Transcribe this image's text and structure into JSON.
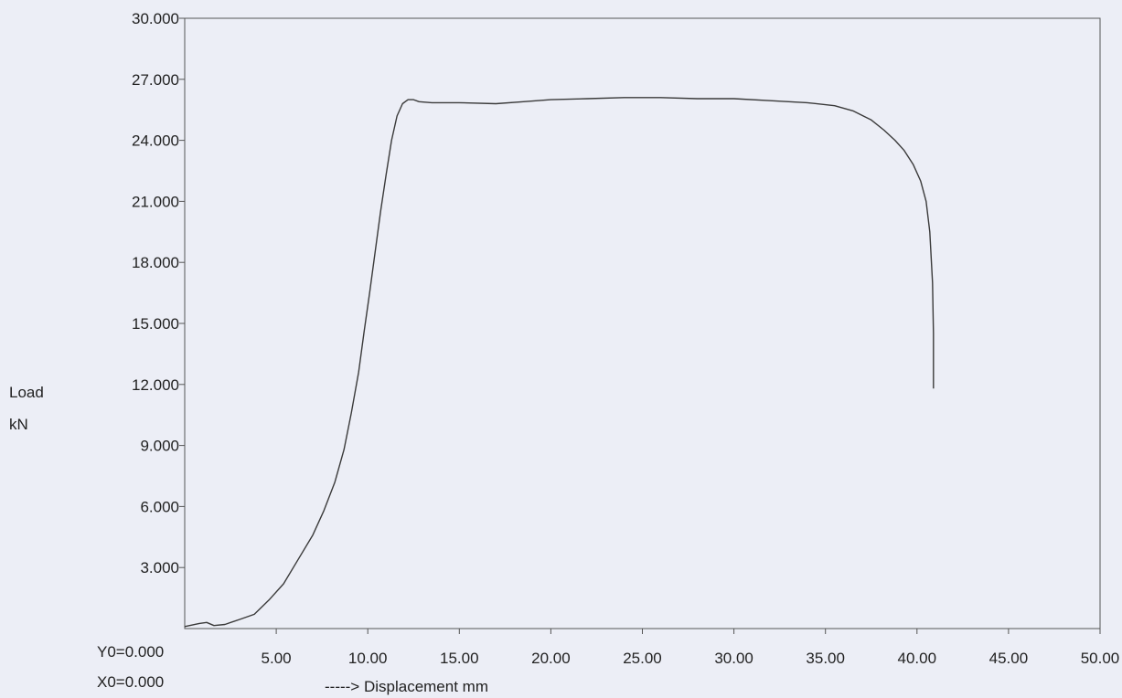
{
  "chart_data": {
    "type": "line",
    "title": "",
    "xlabel": "-----> Displacement  mm",
    "ylabel_line1": "Load",
    "ylabel_line2": "kN",
    "origin_y_label": "Y0=0.000",
    "origin_x_label": "X0=0.000",
    "xlim": [
      0,
      50
    ],
    "ylim": [
      0,
      30
    ],
    "x_ticks": [
      "5.00",
      "10.00",
      "15.00",
      "20.00",
      "25.00",
      "30.00",
      "35.00",
      "40.00",
      "45.00",
      "50.00"
    ],
    "y_ticks": [
      "3.000",
      "6.000",
      "9.000",
      "12.000",
      "15.000",
      "18.000",
      "21.000",
      "24.000",
      "27.000",
      "30.000"
    ],
    "grid": false,
    "legend": "none",
    "line_color": "#3a3a3a",
    "series": [
      {
        "x": [
          0,
          0.8,
          1.2,
          1.6,
          2.2,
          3.0,
          3.8,
          4.6,
          5.4,
          6.2,
          7.0,
          7.6,
          8.2,
          8.7,
          9.1,
          9.5,
          9.8,
          10.1,
          10.4,
          10.7,
          11.0,
          11.3,
          11.6,
          11.9,
          12.2,
          12.5,
          12.8,
          13.5,
          15.0,
          17.0,
          18.5,
          20.0,
          22.0,
          24.0,
          26.0,
          28.0,
          30.0,
          32.0,
          34.0,
          35.5,
          36.5,
          37.5,
          38.2,
          38.8,
          39.3,
          39.8,
          40.2,
          40.5,
          40.7,
          40.85,
          40.9,
          40.9
        ],
        "y": [
          0.1,
          0.25,
          0.3,
          0.15,
          0.2,
          0.45,
          0.7,
          1.4,
          2.2,
          3.4,
          4.6,
          5.8,
          7.2,
          8.8,
          10.6,
          12.6,
          14.6,
          16.5,
          18.5,
          20.5,
          22.3,
          24.0,
          25.2,
          25.8,
          26.0,
          26.0,
          25.9,
          25.85,
          25.85,
          25.8,
          25.9,
          26.0,
          26.05,
          26.1,
          26.1,
          26.05,
          26.05,
          25.95,
          25.85,
          25.7,
          25.45,
          25.0,
          24.5,
          24.0,
          23.5,
          22.8,
          22.0,
          21.0,
          19.5,
          17.0,
          14.5,
          11.8
        ]
      }
    ],
    "annotations": []
  }
}
